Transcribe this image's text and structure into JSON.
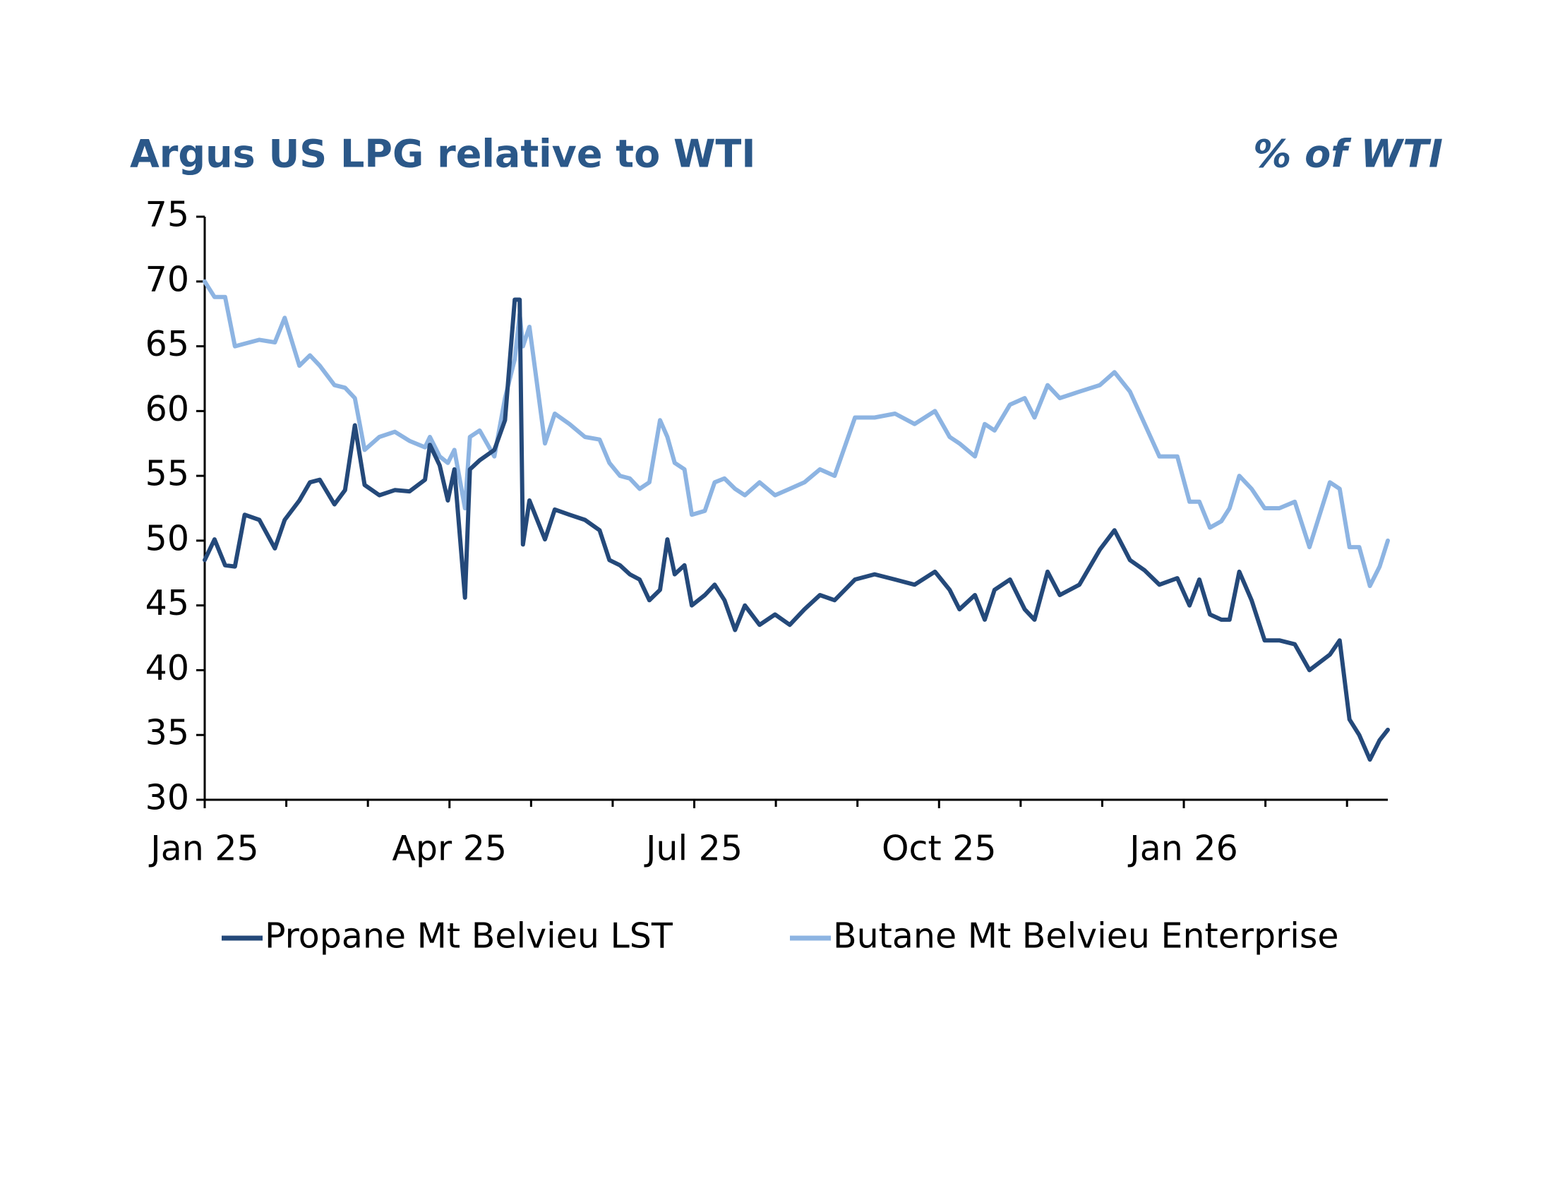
{
  "chart_data": {
    "type": "line",
    "title": "Argus US LPG relative to WTI",
    "subtitle": "% of WTI",
    "x": [
      0,
      0.12,
      0.25,
      0.37,
      0.49,
      0.67,
      0.86,
      0.98,
      1.16,
      1.29,
      1.41,
      1.59,
      1.72,
      1.84,
      1.96,
      2.14,
      2.33,
      2.51,
      2.7,
      2.76,
      2.88,
      2.98,
      3.06,
      3.19,
      3.25,
      3.37,
      3.55,
      3.68,
      3.8,
      3.86,
      3.9,
      3.98,
      4.17,
      4.29,
      4.47,
      4.66,
      4.84,
      4.96,
      5.09,
      5.21,
      5.33,
      5.45,
      5.58,
      5.67,
      5.76,
      5.88,
      5.97,
      6.13,
      6.25,
      6.37,
      6.5,
      6.62,
      6.8,
      6.99,
      7.17,
      7.35,
      7.54,
      7.72,
      7.97,
      8.21,
      8.46,
      8.7,
      8.95,
      9.13,
      9.25,
      9.44,
      9.56,
      9.68,
      9.87,
      10.05,
      10.17,
      10.33,
      10.48,
      10.72,
      10.97,
      11.15,
      11.34,
      11.52,
      11.7,
      11.92,
      12.07,
      12.19,
      12.32,
      12.46,
      12.56,
      12.68,
      12.83,
      12.99,
      13.17,
      13.36,
      13.54,
      13.79,
      13.91,
      14.03,
      14.15,
      14.28,
      14.4,
      14.5
    ],
    "series": [
      {
        "name": "Propane Mt Belvieu LST",
        "color": "#24497a",
        "values": [
          48.5,
          50.1,
          48.1,
          48.0,
          52.0,
          51.6,
          49.4,
          51.6,
          53.1,
          54.5,
          54.7,
          52.8,
          53.9,
          58.9,
          54.3,
          53.5,
          53.9,
          53.8,
          54.7,
          57.4,
          55.8,
          53.1,
          55.5,
          45.6,
          55.5,
          56.2,
          57.0,
          59.3,
          68.6,
          68.6,
          49.7,
          53.1,
          50.1,
          52.4,
          52.0,
          51.6,
          50.8,
          48.5,
          48.1,
          47.4,
          47.0,
          45.4,
          46.2,
          50.1,
          47.4,
          48.1,
          45.0,
          45.8,
          46.6,
          45.4,
          43.1,
          45.0,
          43.5,
          44.3,
          43.5,
          44.7,
          45.8,
          45.4,
          47.0,
          47.4,
          47.0,
          46.6,
          47.6,
          46.2,
          44.7,
          45.8,
          43.9,
          46.2,
          47.0,
          44.7,
          43.9,
          47.6,
          45.8,
          46.6,
          49.3,
          50.8,
          48.5,
          47.7,
          46.6,
          47.1,
          45.0,
          47.0,
          44.3,
          43.9,
          43.9,
          47.6,
          45.4,
          42.3,
          42.3,
          42.0,
          40.0,
          41.2,
          42.3,
          36.2,
          35.0,
          33.1,
          34.6,
          35.4
        ]
      },
      {
        "name": "Butane Mt Belvieu Enterprise",
        "color": "#8db4e2",
        "values": [
          70,
          68.8,
          68.8,
          65,
          65.2,
          65.5,
          65.3,
          67.2,
          63.5,
          64.3,
          63.5,
          62,
          61.8,
          61,
          57,
          58,
          58.4,
          57.7,
          57.2,
          58,
          56.5,
          56,
          57,
          52.5,
          58,
          58.5,
          56.5,
          61,
          64,
          67.5,
          65,
          66.5,
          57.5,
          59.8,
          59,
          58,
          57.8,
          56,
          55,
          54.8,
          54,
          54.5,
          59.3,
          58,
          56,
          55.5,
          52,
          52.3,
          54.5,
          54.8,
          54,
          53.5,
          54.5,
          53.5,
          54,
          54.5,
          55.5,
          55,
          59.5,
          59.5,
          59.8,
          59,
          60,
          58,
          57.5,
          56.5,
          59,
          58.5,
          60.5,
          61,
          59.5,
          62,
          61,
          61.5,
          62,
          63,
          61.5,
          59,
          56.5,
          56.5,
          53,
          53,
          51,
          51.5,
          52.5,
          55,
          54,
          52.5,
          52.5,
          53,
          49.5,
          54.5,
          54,
          49.5,
          49.5,
          46.5,
          48,
          50
        ]
      }
    ],
    "xlim": [
      0,
      14.5
    ],
    "xticks": [
      {
        "value": 0,
        "label": "Jan 25"
      },
      {
        "value": 3,
        "label": "Apr 25"
      },
      {
        "value": 6,
        "label": "Jul 25"
      },
      {
        "value": 9,
        "label": "Oct 25"
      },
      {
        "value": 12,
        "label": "Jan 26"
      }
    ],
    "xminorticks": [
      1,
      2,
      4,
      5,
      7,
      8,
      10,
      11,
      13,
      14
    ],
    "ylim": [
      30,
      75
    ],
    "yticks": [
      30,
      35,
      40,
      45,
      50,
      55,
      60,
      65,
      70,
      75
    ],
    "grid": false
  }
}
